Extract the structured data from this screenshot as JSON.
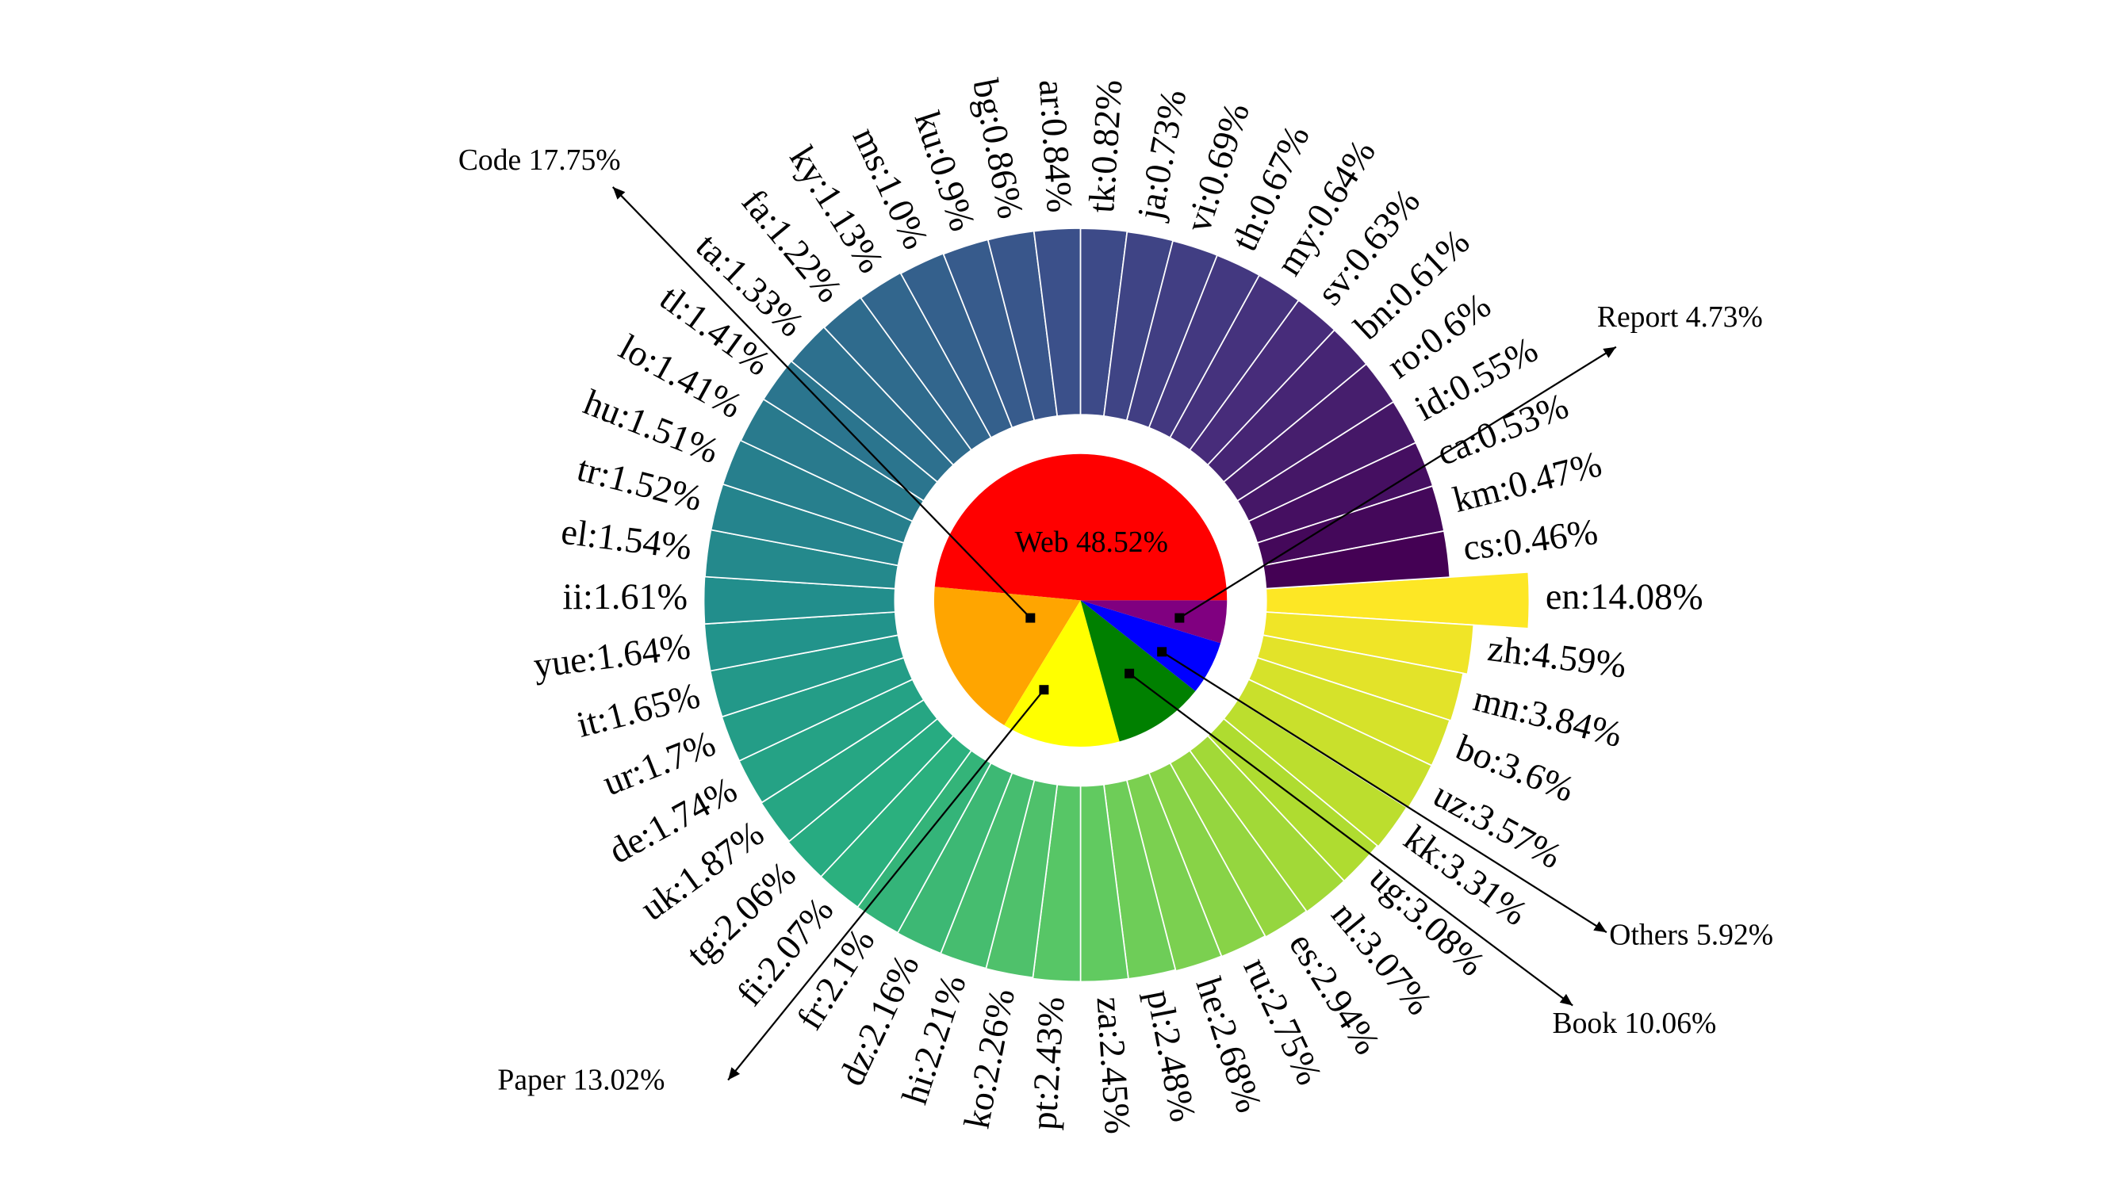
{
  "chart_data": [
    {
      "type": "bar",
      "polar": true,
      "colormap": "viridis",
      "values": [
        14.08,
        4.59,
        3.84,
        3.6,
        3.57,
        3.31,
        3.08,
        3.07,
        2.94,
        2.75,
        2.68,
        2.48,
        2.45,
        2.43,
        2.26,
        2.21,
        2.16,
        2.1,
        2.07,
        2.06,
        1.87,
        1.74,
        1.7,
        1.65,
        1.64,
        1.61,
        1.54,
        1.52,
        1.51,
        1.41,
        1.41,
        1.33,
        1.22,
        1.13,
        1.0,
        0.9,
        0.86,
        0.84,
        0.82,
        0.73,
        0.69,
        0.67,
        0.64,
        0.63,
        0.61,
        0.6,
        0.55,
        0.53,
        0.47,
        0.46
      ],
      "value_labels": [
        "en:14.08%",
        "zh:4.59%",
        "mn:3.84%",
        "bo:3.6%",
        "uz:3.57%",
        "kk:3.31%",
        "ug:3.08%",
        "nl:3.07%",
        "es:2.94%",
        "ru:2.75%",
        "he:2.68%",
        "pl:2.48%",
        "za:2.45%",
        "pt:2.43%",
        "ko:2.26%",
        "hi:2.21%",
        "dz:2.16%",
        "fr:2.1%",
        "fi:2.07%",
        "tg:2.06%",
        "uk:1.87%",
        "de:1.74%",
        "ur:1.7%",
        "it:1.65%",
        "yue:1.64%",
        "ii:1.61%",
        "el:1.54%",
        "tr:1.52%",
        "hu:1.51%",
        "lo:1.41%",
        "tl:1.41%",
        "ta:1.33%",
        "fa:1.22%",
        "ky:1.13%",
        "ms:1.0%",
        "ku:0.9%",
        "bg:0.86%",
        "ar:0.84%",
        "tk:0.82%",
        "ja:0.73%",
        "vi:0.69%",
        "th:0.67%",
        "my:0.64%",
        "sv:0.63%",
        "bn:0.61%",
        "ro:0.6%",
        "id:0.55%",
        "ca:0.53%",
        "km:0.47%",
        "cs:0.46%"
      ]
    },
    {
      "type": "pie",
      "values": [
        48.52,
        17.75,
        13.02,
        10.06,
        5.92,
        4.73
      ],
      "value_labels": [
        "Web 48.52%",
        "Code 17.75%",
        "Paper 13.02%",
        "Book 10.06%",
        "Others 5.92%",
        "Report 4.73%"
      ],
      "colors": [
        "#ff0000",
        "#ffa500",
        "#ffff00",
        "#008000",
        "#0000ff",
        "#800080"
      ]
    }
  ]
}
